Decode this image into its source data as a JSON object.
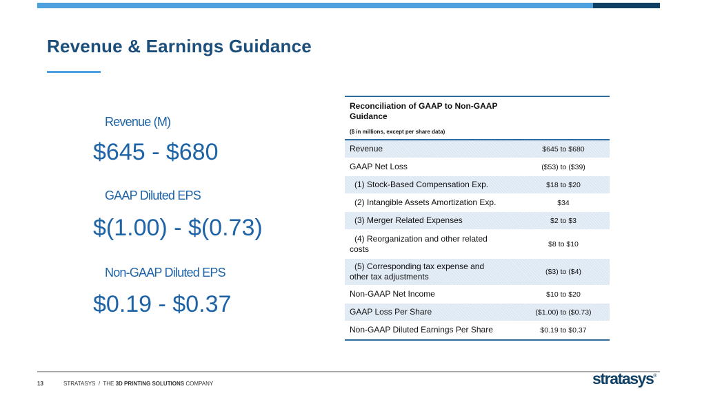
{
  "colors": {
    "accent_light": "#4d9fdd",
    "accent_dark": "#0f3f63",
    "title": "#1b4e7a",
    "metric": "#1d63a6",
    "row_shade": "#dde8f3"
  },
  "slide": {
    "title": "Revenue & Earnings Guidance"
  },
  "metrics": [
    {
      "label": "Revenue (M)",
      "value": "$645 - $680"
    },
    {
      "label": "GAAP Diluted EPS",
      "value": "$(1.00) - $(0.73)"
    },
    {
      "label": "Non-GAAP Diluted EPS",
      "value": "$0.19 - $0.37"
    }
  ],
  "reconciliation": {
    "title": "Reconciliation of GAAP to Non-GAAP Guidance",
    "subtitle": "($ in millions, except per share data)",
    "rows": [
      {
        "label": "Revenue",
        "value": "$645 to $680"
      },
      {
        "label": "GAAP Net Loss",
        "value": "($53) to ($39)"
      },
      {
        "label": "(1) Stock-Based Compensation Exp.",
        "value": "$18 to $20"
      },
      {
        "label": "(2) Intangible Assets Amortization Exp.",
        "value": "$34"
      },
      {
        "label": "(3) Merger Related Expenses",
        "value": "$2 to $3"
      },
      {
        "label": "(4) Reorganization and other related",
        "label_cont": "costs",
        "value": "$8 to $10"
      },
      {
        "label": "(5) Corresponding tax expense and",
        "label_cont": "other tax adjustments",
        "value": "($3) to ($4)"
      },
      {
        "label": "Non-GAAP Net Income",
        "value": "$10 to $20"
      },
      {
        "label": "GAAP Loss Per Share",
        "value": "($1.00) to ($0.73)"
      },
      {
        "label": "Non-GAAP Diluted Earnings Per Share",
        "value": "$0.19 to $0.37"
      }
    ]
  },
  "footer": {
    "page_number": "13",
    "company_prefix": "STRATASYS  /  THE ",
    "company_bold": "3D PRINTING SOLUTIONS",
    "company_suffix": " COMPANY",
    "logo_text": "stratasys",
    "logo_mark": "®"
  }
}
